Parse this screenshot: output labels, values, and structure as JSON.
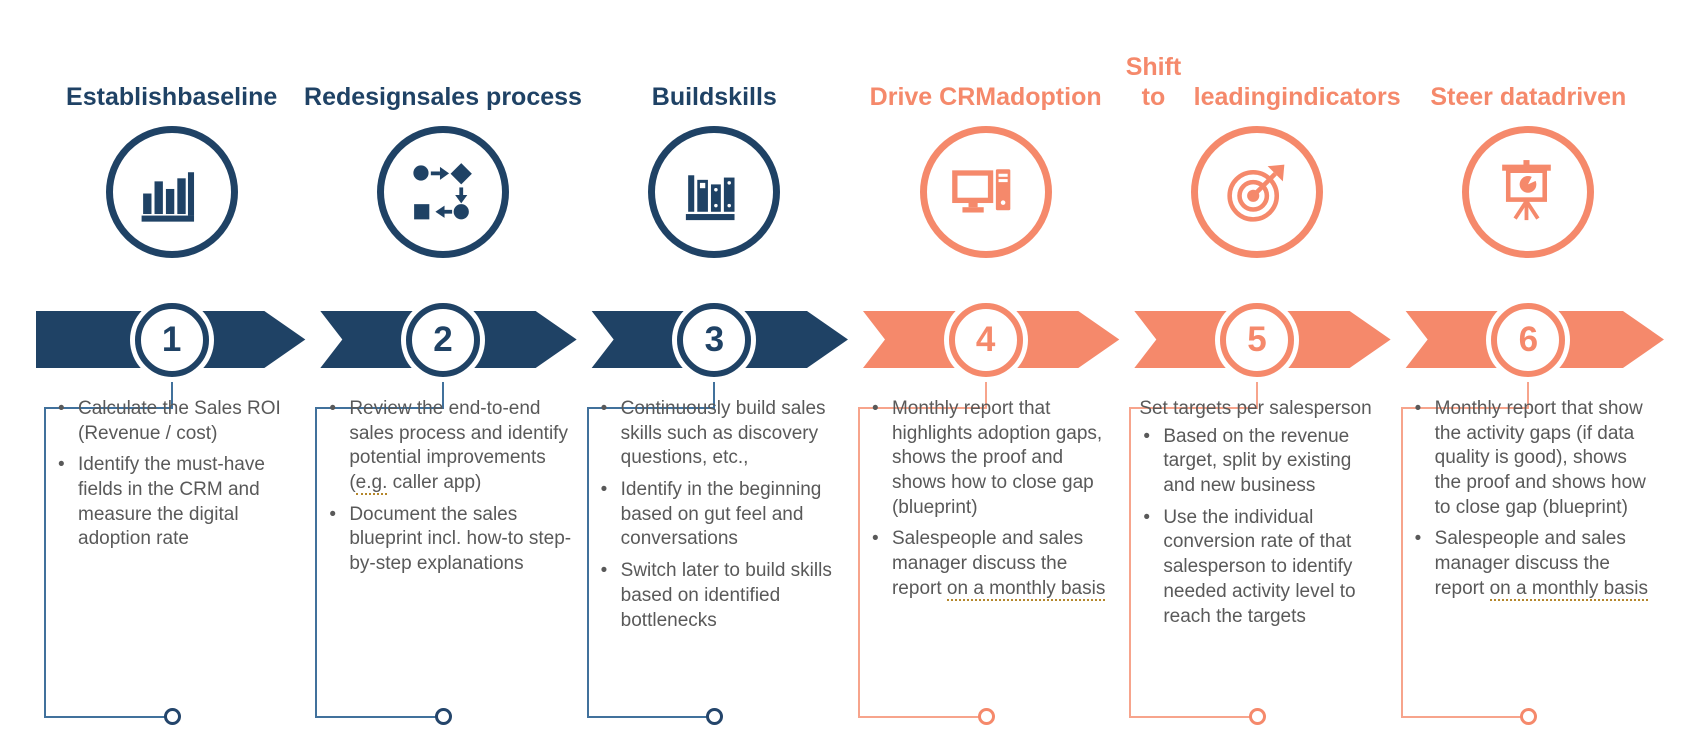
{
  "colors": {
    "navy": "#1f4265",
    "salmon": "#f5896b",
    "navy_connector_line": "#41719c",
    "salmon_connector_line": "#f7a48c",
    "body_text": "#595959",
    "proofing_underline": "#b5872b"
  },
  "steps": [
    {
      "number": "1",
      "title_lines": [
        "Establish",
        "baseline"
      ],
      "icon": "bar-chart-icon",
      "theme": "navy",
      "lead": null,
      "bullets": [
        {
          "text": "Calculate the Sales ROI (Revenue / cost)"
        },
        {
          "text": "Identify the must-have fields in the CRM and measure the digital adoption rate"
        }
      ]
    },
    {
      "number": "2",
      "title_lines": [
        "Redesign",
        "sales process"
      ],
      "icon": "flow-diagram-icon",
      "theme": "navy",
      "lead": null,
      "bullets": [
        {
          "text": "Review the end-to-end sales process and identify potential improvements (e.g. caller app)",
          "squiggle": "e.g."
        },
        {
          "text": "Document the sales blueprint incl. how-to step-by-step explanations"
        }
      ]
    },
    {
      "number": "3",
      "title_lines": [
        "Build",
        "skills"
      ],
      "icon": "books-icon",
      "theme": "navy",
      "lead": null,
      "bullets": [
        {
          "text": "Continuously build sales skills such as discovery questions, etc.,"
        },
        {
          "text": "Identify in the beginning based on gut feel and conversations"
        },
        {
          "text": "Switch later to build skills based on identified bottlenecks"
        }
      ]
    },
    {
      "number": "4",
      "title_lines": [
        "Drive CRM",
        "adoption"
      ],
      "icon": "desktop-computer-icon",
      "theme": "salmon",
      "lead": null,
      "bullets": [
        {
          "text": "Monthly report that highlights adoption gaps, shows the proof and shows how to close gap (blueprint)"
        },
        {
          "text": "Salespeople and sales manager discuss the report on a monthly basis",
          "squiggle": "on a monthly basis"
        }
      ]
    },
    {
      "number": "5",
      "title_lines": [
        "Shift to",
        "leading",
        "indicators"
      ],
      "icon": "target-icon",
      "theme": "salmon",
      "lead": "Set targets per salesperson",
      "bullets": [
        {
          "text": "Based on the revenue target, split by existing and new business"
        },
        {
          "text": "Use the individual conversion rate of that salesperson to identify needed activity level to reach the targets"
        }
      ]
    },
    {
      "number": "6",
      "title_lines": [
        "Steer data",
        "driven"
      ],
      "icon": "presentation-chart-icon",
      "theme": "salmon",
      "lead": null,
      "bullets": [
        {
          "text": "Monthly report that show the activity gaps (if data quality is good), shows the proof and shows how to close gap (blueprint)"
        },
        {
          "text": "Salespeople and sales manager discuss the report on a monthly basis",
          "squiggle": "on a monthly basis"
        }
      ]
    }
  ]
}
